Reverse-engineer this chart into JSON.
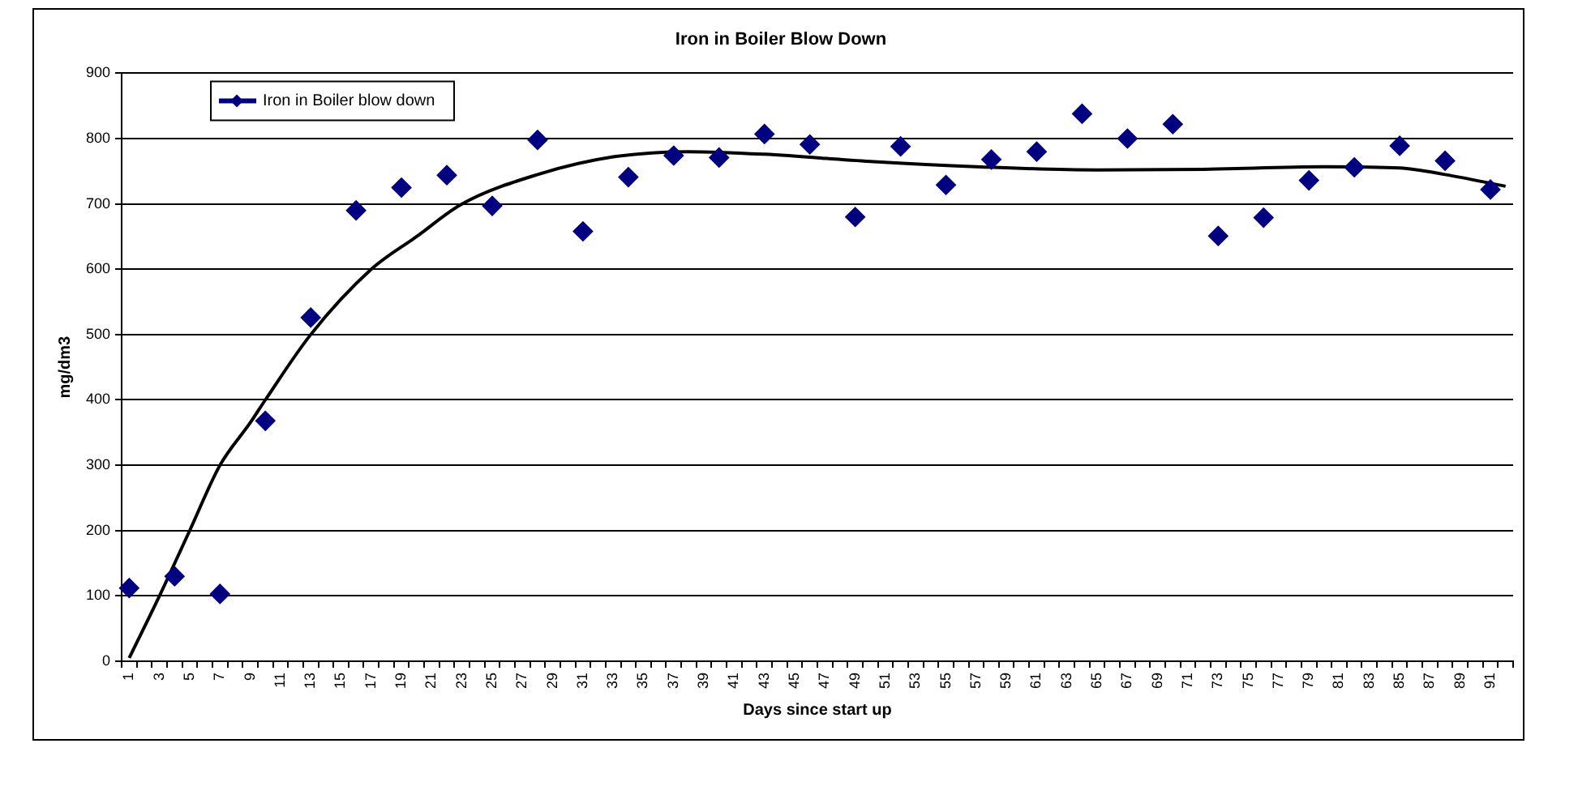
{
  "chart_data": {
    "type": "line",
    "title": "Iron in Boiler Blow Down",
    "xlabel": "Days since start up",
    "ylabel": "mg/dm3",
    "categories": [
      "1",
      null,
      "3",
      null,
      "5",
      null,
      "7",
      null,
      "9",
      null,
      "11",
      null,
      "13",
      null,
      "15",
      null,
      "17",
      null,
      "19",
      null,
      "21",
      null,
      "23",
      null,
      "25",
      null,
      "27",
      null,
      "29",
      null,
      "31",
      null,
      "33",
      null,
      "35",
      null,
      "37",
      null,
      "39",
      null,
      "41",
      null,
      "43",
      null,
      "45",
      null,
      "47",
      null,
      "49",
      null,
      "51",
      null,
      "53",
      null,
      "55",
      null,
      "57",
      null,
      "59",
      null,
      "61",
      null,
      "63",
      null,
      "65",
      null,
      "67",
      null,
      "69",
      null,
      "71",
      null,
      "73",
      null,
      "75",
      null,
      "77",
      null,
      "79",
      null,
      "81",
      null,
      "83",
      null,
      "85",
      null,
      "87",
      null,
      "89",
      null,
      "91",
      null
    ],
    "ylim": [
      0,
      900
    ],
    "yticks": [
      0,
      100,
      200,
      300,
      400,
      500,
      600,
      700,
      800,
      900
    ],
    "grid": "y",
    "legend": "top left",
    "series": [
      {
        "name": "Iron in Boiler blow down",
        "type": "scatter",
        "color": "#000080",
        "marker": "diamond",
        "values": [
          112,
          null,
          null,
          130,
          null,
          null,
          103,
          null,
          null,
          368,
          null,
          null,
          526,
          null,
          null,
          690,
          null,
          null,
          725,
          null,
          null,
          744,
          null,
          null,
          697,
          null,
          null,
          798,
          null,
          null,
          658,
          null,
          null,
          741,
          null,
          null,
          774,
          null,
          null,
          771,
          null,
          null,
          807,
          null,
          null,
          791,
          null,
          null,
          680,
          null,
          null,
          788,
          null,
          null,
          729,
          null,
          null,
          768,
          null,
          null,
          780,
          null,
          null,
          838,
          null,
          null,
          800,
          null,
          null,
          822,
          null,
          null,
          651,
          null,
          null,
          679,
          null,
          null,
          736,
          null,
          null,
          756,
          null,
          null,
          789,
          null,
          null,
          766,
          null,
          null,
          722,
          null
        ]
      },
      {
        "color": "#000000",
        "marker": "none",
        "values": [
          5,
          null,
          100,
          null,
          200,
          null,
          300,
          null,
          365,
          400,
          null,
          null,
          500,
          null,
          null,
          null,
          600,
          null,
          null,
          650,
          null,
          null,
          700,
          null,
          null,
          null,
          null,
          745,
          null,
          null,
          null,
          null,
          772,
          null,
          null,
          null,
          null,
          780,
          null,
          null,
          null,
          null,
          776,
          null,
          null,
          null,
          null,
          null,
          null,
          765,
          null,
          null,
          null,
          null,
          null,
          null,
          757,
          null,
          null,
          null,
          null,
          null,
          null,
          null,
          752,
          null,
          null,
          null,
          null,
          null,
          null,
          753,
          null,
          null,
          null,
          null,
          null,
          null,
          null,
          757,
          null,
          null,
          null,
          null,
          755,
          null,
          null,
          745,
          null,
          null,
          null,
          727
        ]
      }
    ]
  }
}
